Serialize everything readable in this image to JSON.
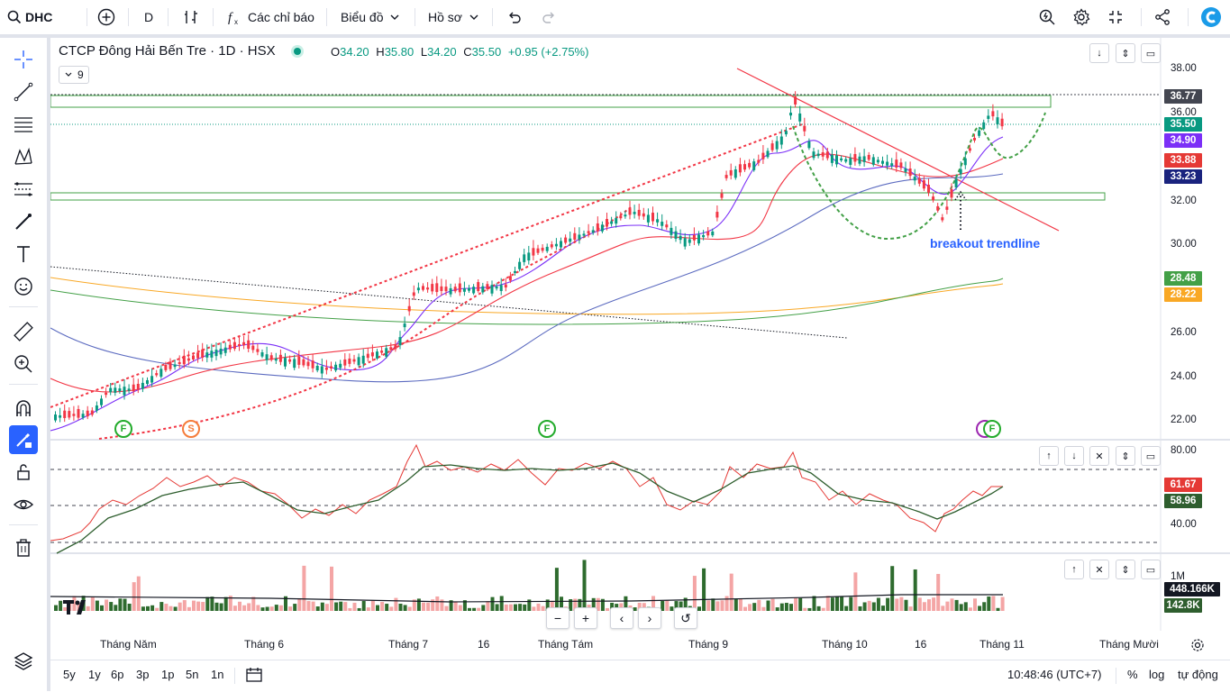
{
  "topbar": {
    "symbol": "DHC",
    "interval": "D",
    "indicators_label": "Các chỉ báo",
    "chart_type_label": "Biểu đồ",
    "profile_label": "Hồ sơ"
  },
  "legend": {
    "title": "CTCP Đông Hải Bến Tre · 1D · HSX",
    "open_key": "O",
    "open": "34.20",
    "high_key": "H",
    "high": "35.80",
    "low_key": "L",
    "low": "34.20",
    "close_key": "C",
    "close": "35.50",
    "change": "+0.95 (+2.75%)",
    "indicator_count": "9"
  },
  "price_axis": {
    "ticks": [
      "38.00",
      "36.00",
      "32.00",
      "30.00",
      "26.00",
      "24.00",
      "22.00"
    ],
    "labels": [
      {
        "text": "36.77",
        "color": "#434651"
      },
      {
        "text": "35.50",
        "color": "#089981"
      },
      {
        "text": "34.90",
        "color": "#7b2ff7"
      },
      {
        "text": "33.88",
        "color": "#e53935"
      },
      {
        "text": "33.23",
        "color": "#1a237e"
      },
      {
        "text": "28.48",
        "color": "#43a047"
      },
      {
        "text": "28.22",
        "color": "#f9a825"
      }
    ]
  },
  "rsi_axis": {
    "ticks": [
      "80.00",
      "40.00"
    ],
    "labels": [
      {
        "text": "61.67",
        "color": "#e53935"
      },
      {
        "text": "58.96",
        "color": "#2e5e2e"
      }
    ]
  },
  "volume_axis": {
    "tick": "1M",
    "labels": [
      {
        "text": "448.166K",
        "color": "#131722"
      },
      {
        "text": "142.8K",
        "color": "#2e5e2e"
      }
    ]
  },
  "annotation": "breakout trendline",
  "markers": [
    "F",
    "S",
    "F",
    "F"
  ],
  "time_axis": [
    "Tháng Năm",
    "Tháng 6",
    "Tháng 7",
    "16",
    "Tháng Tám",
    "Tháng 9",
    "Tháng 10",
    "16",
    "Tháng 11",
    "Tháng Mười"
  ],
  "bottombar": {
    "ranges": [
      "5y",
      "1y",
      "6p",
      "3p",
      "1p",
      "5n",
      "1n"
    ],
    "clock": "10:48:46 (UTC+7)",
    "percent": "%",
    "log": "log",
    "auto": "tự động"
  },
  "colors": {
    "up": "#089981",
    "down": "#f23645",
    "volume_up": "#2e6b2e",
    "volume_down": "#f4a5a5"
  }
}
